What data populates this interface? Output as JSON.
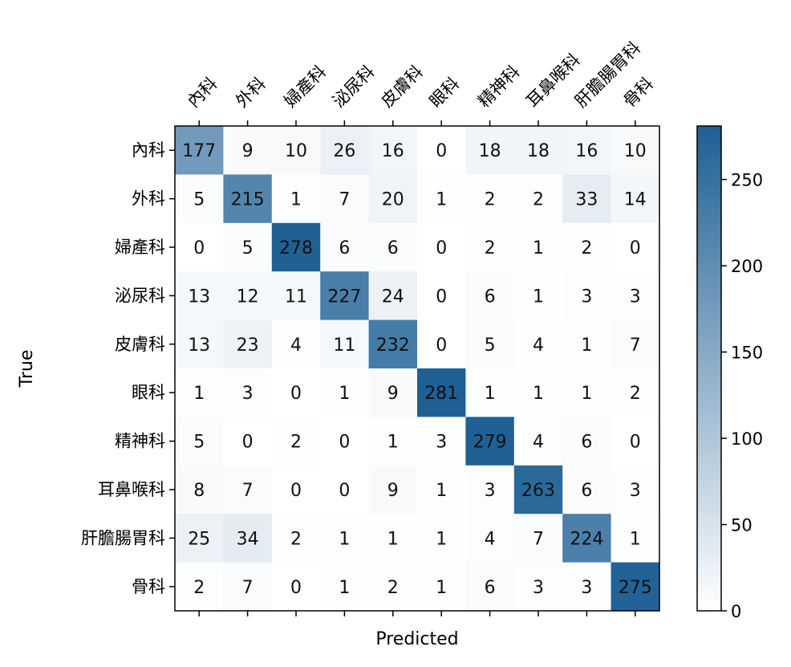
{
  "chart_data": {
    "type": "heatmap",
    "title": "",
    "xlabel": "Predicted",
    "ylabel": "True",
    "x_labels": [
      "內科",
      "外科",
      "婦產科",
      "泌尿科",
      "皮膚科",
      "眼科",
      "精神科",
      "耳鼻喉科",
      "肝膽腸胃科",
      "骨科"
    ],
    "y_labels": [
      "內科",
      "外科",
      "婦產科",
      "泌尿科",
      "皮膚科",
      "眼科",
      "精神科",
      "耳鼻喉科",
      "肝膽腸胃科",
      "骨科"
    ],
    "values": [
      [
        177,
        9,
        10,
        26,
        16,
        0,
        18,
        18,
        16,
        10
      ],
      [
        5,
        215,
        1,
        7,
        20,
        1,
        2,
        2,
        33,
        14
      ],
      [
        0,
        5,
        278,
        6,
        6,
        0,
        2,
        1,
        2,
        0
      ],
      [
        13,
        12,
        11,
        227,
        24,
        0,
        6,
        1,
        3,
        3
      ],
      [
        13,
        23,
        4,
        11,
        232,
        0,
        5,
        4,
        1,
        7
      ],
      [
        1,
        3,
        0,
        1,
        9,
        281,
        1,
        1,
        1,
        2
      ],
      [
        5,
        0,
        2,
        0,
        1,
        3,
        279,
        4,
        6,
        0
      ],
      [
        8,
        7,
        0,
        0,
        9,
        1,
        3,
        263,
        6,
        3
      ],
      [
        25,
        34,
        2,
        1,
        1,
        1,
        4,
        7,
        224,
        1
      ],
      [
        2,
        7,
        0,
        1,
        2,
        1,
        6,
        3,
        3,
        275
      ]
    ],
    "colorbar": {
      "min": 0,
      "max": 281,
      "ticks": [
        "0",
        "50",
        "100",
        "150",
        "200",
        "250"
      ],
      "colors": [
        "#ffffff",
        "#1e5f94"
      ]
    }
  }
}
